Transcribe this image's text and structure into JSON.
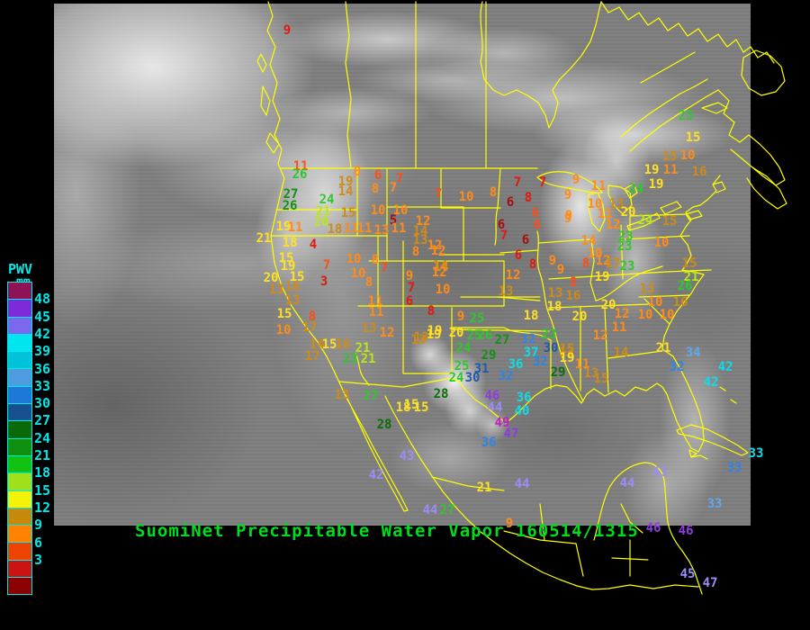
{
  "title": {
    "text": "SuomiNet Precipitable Water Vapor 160514/1315",
    "color": "#00dc1e"
  },
  "legend": {
    "title": "PWV",
    "unit": "mm",
    "labels": [
      48,
      45,
      42,
      39,
      36,
      33,
      30,
      27,
      24,
      21,
      18,
      15,
      12,
      9,
      6,
      3
    ],
    "colors": [
      "#8E1256",
      "#7D2BD9",
      "#7B68EE",
      "#00E5EE",
      "#00C3D9",
      "#4F9BE0",
      "#1E78D7",
      "#17508F",
      "#0A6A0A",
      "#0F8F0F",
      "#12C212",
      "#9FE01A",
      "#F2F20A",
      "#C8880A",
      "#FF8200",
      "#EE4300",
      "#CC1212",
      "#8B0000"
    ],
    "text_color": "#00e8e8"
  },
  "palette": {
    "dr": "#A50F0F",
    "r": "#DE1B10",
    "or": "#F8501A",
    "o": "#FF8C1A",
    "g": "#CF8B17",
    "y": "#FFE024",
    "yg": "#B8E818",
    "gr": "#2FC62F",
    "dg": "#129112",
    "ddg": "#0A6E0A",
    "db": "#2458A8",
    "b": "#2F85E0",
    "lb": "#5FA8EF",
    "cy": "#10DCE8",
    "lv": "#9C8CFA",
    "pu": "#8F3BE0",
    "mg": "#C023C0"
  },
  "map": {
    "border_color": "#ffff00",
    "stations": [
      [
        9,
        319,
        34,
        "r"
      ],
      [
        11,
        334,
        185,
        "or"
      ],
      [
        26,
        333,
        194,
        "gr"
      ],
      [
        27,
        323,
        216,
        "dg"
      ],
      [
        26,
        322,
        229,
        "dg"
      ],
      [
        24,
        363,
        222,
        "gr"
      ],
      [
        21,
        359,
        235,
        "yg"
      ],
      [
        20,
        357,
        247,
        "yg"
      ],
      [
        19,
        384,
        202,
        "g"
      ],
      [
        14,
        384,
        213,
        "g"
      ],
      [
        8,
        397,
        191,
        "o"
      ],
      [
        6,
        420,
        195,
        "or"
      ],
      [
        7,
        444,
        199,
        "or"
      ],
      [
        8,
        417,
        210,
        "o"
      ],
      [
        7,
        437,
        209,
        "o"
      ],
      [
        15,
        387,
        237,
        "g"
      ],
      [
        10,
        420,
        234,
        "o"
      ],
      [
        10,
        445,
        234,
        "o"
      ],
      [
        5,
        437,
        245,
        "dr"
      ],
      [
        12,
        470,
        246,
        "o"
      ],
      [
        19,
        315,
        252,
        "y"
      ],
      [
        11,
        328,
        253,
        "o"
      ],
      [
        18,
        372,
        255,
        "g"
      ],
      [
        11,
        390,
        254,
        "o"
      ],
      [
        11,
        405,
        254,
        "o"
      ],
      [
        13,
        424,
        256,
        "o"
      ],
      [
        11,
        443,
        254,
        "o"
      ],
      [
        14,
        467,
        257,
        "g"
      ],
      [
        21,
        293,
        265,
        "y"
      ],
      [
        18,
        322,
        270,
        "y"
      ],
      [
        4,
        348,
        272,
        "r"
      ],
      [
        15,
        318,
        287,
        "y"
      ],
      [
        7,
        487,
        216,
        "or"
      ],
      [
        10,
        518,
        219,
        "o"
      ],
      [
        8,
        548,
        214,
        "o"
      ],
      [
        7,
        575,
        203,
        "r"
      ],
      [
        7,
        603,
        203,
        "r"
      ],
      [
        6,
        567,
        225,
        "dr"
      ],
      [
        8,
        587,
        220,
        "r"
      ],
      [
        6,
        595,
        237,
        "or"
      ],
      [
        6,
        597,
        250,
        "or"
      ],
      [
        9,
        632,
        240,
        "o"
      ],
      [
        6,
        557,
        250,
        "dr"
      ],
      [
        7,
        560,
        262,
        "r"
      ],
      [
        6,
        584,
        267,
        "dr"
      ],
      [
        13,
        467,
        267,
        "g"
      ],
      [
        8,
        462,
        280,
        "o"
      ],
      [
        12,
        487,
        279,
        "o"
      ],
      [
        14,
        490,
        297,
        "o"
      ],
      [
        6,
        576,
        284,
        "r"
      ],
      [
        8,
        592,
        294,
        "r"
      ],
      [
        9,
        614,
        290,
        "o"
      ],
      [
        9,
        623,
        300,
        "o"
      ],
      [
        8,
        637,
        314,
        "or"
      ],
      [
        12,
        570,
        306,
        "o"
      ],
      [
        13,
        562,
        324,
        "g"
      ],
      [
        13,
        617,
        326,
        "g"
      ],
      [
        16,
        637,
        329,
        "g"
      ],
      [
        18,
        616,
        341,
        "y"
      ],
      [
        18,
        590,
        351,
        "y"
      ],
      [
        9,
        640,
        200,
        "o"
      ],
      [
        9,
        631,
        217,
        "o"
      ],
      [
        11,
        665,
        207,
        "o"
      ],
      [
        10,
        661,
        227,
        "o"
      ],
      [
        13,
        685,
        227,
        "g"
      ],
      [
        11,
        672,
        238,
        "o"
      ],
      [
        9,
        631,
        243,
        "o"
      ],
      [
        24,
        707,
        210,
        "gr"
      ],
      [
        19,
        729,
        205,
        "y"
      ],
      [
        19,
        724,
        189,
        "y"
      ],
      [
        11,
        745,
        189,
        "o"
      ],
      [
        16,
        777,
        191,
        "g"
      ],
      [
        15,
        744,
        174,
        "g"
      ],
      [
        10,
        764,
        173,
        "o"
      ],
      [
        23,
        762,
        129,
        "gr"
      ],
      [
        15,
        770,
        153,
        "y"
      ],
      [
        20,
        698,
        236,
        "y"
      ],
      [
        12,
        681,
        250,
        "o"
      ],
      [
        24,
        717,
        245,
        "yg"
      ],
      [
        23,
        695,
        263,
        "gr"
      ],
      [
        23,
        694,
        274,
        "gr"
      ],
      [
        14,
        654,
        268,
        "o"
      ],
      [
        10,
        661,
        282,
        "o"
      ],
      [
        8,
        651,
        293,
        "or"
      ],
      [
        12,
        670,
        290,
        "o"
      ],
      [
        17,
        681,
        293,
        "g"
      ],
      [
        23,
        697,
        296,
        "gr"
      ],
      [
        19,
        669,
        308,
        "y"
      ],
      [
        13,
        719,
        321,
        "g"
      ],
      [
        10,
        735,
        270,
        "o"
      ],
      [
        15,
        744,
        246,
        "g"
      ],
      [
        15,
        766,
        293,
        "g"
      ],
      [
        21,
        768,
        308,
        "yg"
      ],
      [
        26,
        761,
        318,
        "gr"
      ],
      [
        20,
        676,
        339,
        "y"
      ],
      [
        10,
        728,
        336,
        "o"
      ],
      [
        16,
        756,
        336,
        "g"
      ],
      [
        12,
        691,
        349,
        "o"
      ],
      [
        10,
        717,
        350,
        "o"
      ],
      [
        10,
        741,
        350,
        "o"
      ],
      [
        20,
        644,
        352,
        "y"
      ],
      [
        11,
        688,
        364,
        "o"
      ],
      [
        12,
        667,
        373,
        "o"
      ],
      [
        23,
        610,
        372,
        "gr"
      ],
      [
        30,
        612,
        387,
        "db"
      ],
      [
        15,
        630,
        388,
        "g"
      ],
      [
        29,
        620,
        414,
        "ddg"
      ],
      [
        11,
        647,
        405,
        "o"
      ],
      [
        13,
        657,
        415,
        "g"
      ],
      [
        15,
        668,
        421,
        "g"
      ],
      [
        14,
        690,
        392,
        "g"
      ],
      [
        21,
        737,
        387,
        "y"
      ],
      [
        34,
        770,
        392,
        "lb"
      ],
      [
        32,
        752,
        408,
        "b"
      ],
      [
        42,
        806,
        408,
        "cy"
      ],
      [
        42,
        790,
        425,
        "cy"
      ],
      [
        33,
        840,
        504,
        "cy"
      ],
      [
        33,
        816,
        520,
        "b"
      ],
      [
        33,
        794,
        560,
        "lb"
      ],
      [
        8,
        479,
        346,
        "r"
      ],
      [
        9,
        512,
        352,
        "o"
      ],
      [
        25,
        530,
        354,
        "gr"
      ],
      [
        19,
        482,
        372,
        "y"
      ],
      [
        13,
        465,
        378,
        "g"
      ],
      [
        20,
        507,
        370,
        "y"
      ],
      [
        25,
        527,
        373,
        "gr"
      ],
      [
        26,
        539,
        373,
        "gr"
      ],
      [
        27,
        558,
        378,
        "dg"
      ],
      [
        32,
        587,
        377,
        "b"
      ],
      [
        24,
        515,
        387,
        "gr"
      ],
      [
        29,
        543,
        395,
        "dg"
      ],
      [
        37,
        590,
        392,
        "cy"
      ],
      [
        13,
        629,
        392,
        "g"
      ],
      [
        36,
        573,
        405,
        "cy"
      ],
      [
        32,
        600,
        402,
        "b"
      ],
      [
        19,
        630,
        398,
        "y"
      ],
      [
        25,
        513,
        407,
        "gr"
      ],
      [
        31,
        535,
        410,
        "db"
      ],
      [
        24,
        507,
        420,
        "gr"
      ],
      [
        30,
        525,
        420,
        "db"
      ],
      [
        32,
        562,
        418,
        "b"
      ],
      [
        28,
        490,
        438,
        "ddg"
      ],
      [
        15,
        457,
        450,
        "y"
      ],
      [
        46,
        547,
        440,
        "pu"
      ],
      [
        36,
        582,
        442,
        "cy"
      ],
      [
        44,
        550,
        453,
        "lv"
      ],
      [
        40,
        580,
        457,
        "cy"
      ],
      [
        49,
        558,
        470,
        "mg"
      ],
      [
        19,
        320,
        296,
        "y"
      ],
      [
        20,
        301,
        309,
        "y"
      ],
      [
        15,
        330,
        308,
        "y"
      ],
      [
        13,
        307,
        322,
        "g"
      ],
      [
        16,
        325,
        319,
        "g"
      ],
      [
        13,
        325,
        334,
        "g"
      ],
      [
        15,
        316,
        349,
        "y"
      ],
      [
        8,
        347,
        352,
        "or"
      ],
      [
        10,
        315,
        367,
        "o"
      ],
      [
        17,
        344,
        364,
        "g"
      ],
      [
        14,
        352,
        383,
        "g"
      ],
      [
        15,
        366,
        383,
        "y"
      ],
      [
        16,
        381,
        383,
        "g"
      ],
      [
        17,
        347,
        396,
        "g"
      ],
      [
        21,
        403,
        387,
        "yg"
      ],
      [
        23,
        389,
        399,
        "gr"
      ],
      [
        21,
        409,
        399,
        "yg"
      ],
      [
        3,
        360,
        313,
        "r"
      ],
      [
        7,
        363,
        295,
        "or"
      ],
      [
        10,
        393,
        288,
        "o"
      ],
      [
        8,
        417,
        289,
        "o"
      ],
      [
        10,
        398,
        304,
        "o"
      ],
      [
        8,
        410,
        314,
        "o"
      ],
      [
        7,
        427,
        298,
        "or"
      ],
      [
        9,
        455,
        307,
        "o"
      ],
      [
        14,
        489,
        296,
        "g"
      ],
      [
        12,
        488,
        303,
        "o"
      ],
      [
        7,
        457,
        320,
        "r"
      ],
      [
        10,
        492,
        322,
        "o"
      ],
      [
        6,
        455,
        335,
        "r"
      ],
      [
        11,
        417,
        335,
        "o"
      ],
      [
        11,
        418,
        347,
        "o"
      ],
      [
        12,
        483,
        273,
        "o"
      ],
      [
        12,
        430,
        370,
        "o"
      ],
      [
        13,
        410,
        365,
        "g"
      ],
      [
        19,
        483,
        368,
        "y"
      ],
      [
        13,
        468,
        375,
        "g"
      ],
      [
        13,
        380,
        439,
        "g"
      ],
      [
        27,
        412,
        440,
        "gr"
      ],
      [
        18,
        448,
        453,
        "y"
      ],
      [
        15,
        468,
        453,
        "y"
      ],
      [
        28,
        427,
        472,
        "ddg"
      ],
      [
        43,
        452,
        507,
        "lv"
      ],
      [
        42,
        418,
        528,
        "lv"
      ],
      [
        36,
        543,
        492,
        "b"
      ],
      [
        47,
        568,
        482,
        "pu"
      ],
      [
        21,
        538,
        542,
        "y"
      ],
      [
        44,
        580,
        538,
        "lv"
      ],
      [
        44,
        478,
        567,
        "lv"
      ],
      [
        27,
        497,
        567,
        "gr"
      ],
      [
        9,
        566,
        582,
        "o"
      ],
      [
        44,
        697,
        537,
        "lv"
      ],
      [
        43,
        733,
        525,
        "lv"
      ],
      [
        46,
        726,
        587,
        "pu"
      ],
      [
        46,
        762,
        590,
        "pu"
      ],
      [
        45,
        764,
        638,
        "lv"
      ],
      [
        47,
        789,
        648,
        "lv"
      ]
    ]
  }
}
